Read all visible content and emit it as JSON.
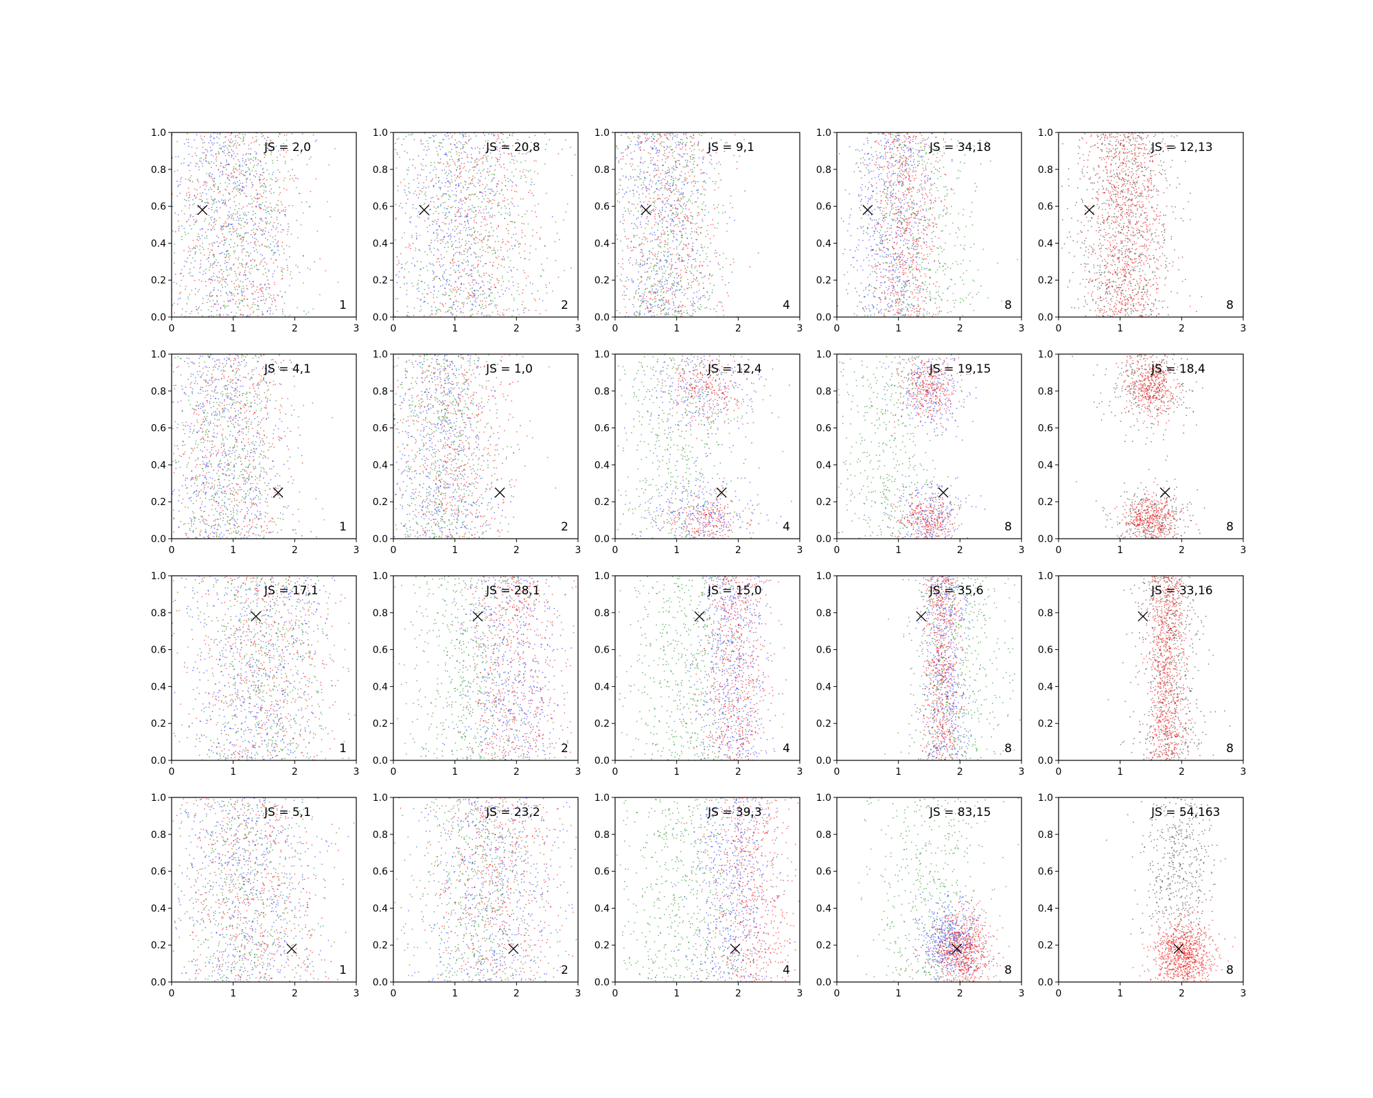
{
  "chart_data": {
    "type": "scatter",
    "layout": {
      "rows": 4,
      "cols": 5
    },
    "xlim": [
      0,
      3
    ],
    "ylim": [
      0,
      1
    ],
    "xticks": [
      "0",
      "1",
      "2",
      "3"
    ],
    "yticks": [
      "0.0",
      "0.2",
      "0.4",
      "0.6",
      "0.8",
      "1.0"
    ],
    "grid": false,
    "colors": {
      "red": "#ee1111",
      "green": "#1a8a1a",
      "blue": "#2233ee",
      "black": "#222222",
      "marker": "#000000"
    },
    "rows": [
      {
        "marker": [
          0.5,
          0.58
        ],
        "panels": [
          {
            "label": "JS = 2,0",
            "corner": "1"
          },
          {
            "label": "JS = 20,8",
            "corner": "2"
          },
          {
            "label": "JS = 9,1",
            "corner": "4"
          },
          {
            "label": "JS = 34,18",
            "corner": "8"
          },
          {
            "label": "JS = 12,13",
            "corner": "8"
          }
        ]
      },
      {
        "marker": [
          1.73,
          0.25
        ],
        "panels": [
          {
            "label": "JS = 4,1",
            "corner": "1"
          },
          {
            "label": "JS = 1,0",
            "corner": "2"
          },
          {
            "label": "JS = 12,4",
            "corner": "4"
          },
          {
            "label": "JS = 19,15",
            "corner": "8"
          },
          {
            "label": "JS = 18,4",
            "corner": "8"
          }
        ]
      },
      {
        "marker": [
          1.37,
          0.78
        ],
        "panels": [
          {
            "label": "JS = 17,1",
            "corner": "1"
          },
          {
            "label": "JS = 28,1",
            "corner": "2"
          },
          {
            "label": "JS = 15,0",
            "corner": "4"
          },
          {
            "label": "JS = 35,6",
            "corner": "8"
          },
          {
            "label": "JS = 33,16",
            "corner": "8"
          }
        ]
      },
      {
        "marker": [
          1.95,
          0.18
        ],
        "panels": [
          {
            "label": "JS = 5,1",
            "corner": "1"
          },
          {
            "label": "JS = 23,2",
            "corner": "2"
          },
          {
            "label": "JS = 39,3",
            "corner": "4"
          },
          {
            "label": "JS = 83,15",
            "corner": "8"
          },
          {
            "label": "JS = 54,163",
            "corner": "8"
          }
        ]
      }
    ]
  }
}
